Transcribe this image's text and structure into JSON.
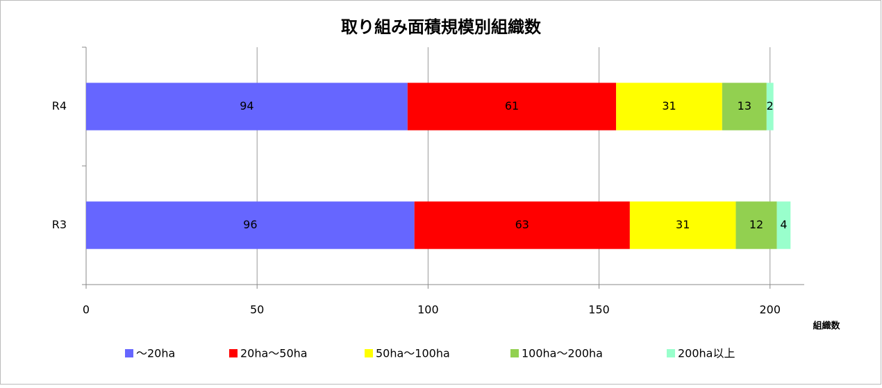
{
  "chart_data": {
    "type": "stacked-bar-horizontal",
    "title": "取り組み面積規模別組織数",
    "categories": [
      "R4",
      "R3"
    ],
    "series": [
      {
        "name": "～20ha",
        "color": "#6666ff",
        "values": [
          94,
          96
        ]
      },
      {
        "name": "20ha～50ha",
        "color": "#ff0000",
        "values": [
          61,
          63
        ]
      },
      {
        "name": "50ha～100ha",
        "color": "#ffff00",
        "values": [
          31,
          31
        ]
      },
      {
        "name": "100ha～200ha",
        "color": "#92d050",
        "values": [
          13,
          12
        ]
      },
      {
        "name": "200ha以上",
        "color": "#99ffcc",
        "values": [
          2,
          4
        ]
      }
    ],
    "xlabel": "組織数",
    "xlim": [
      0,
      210
    ],
    "xticks": [
      0,
      50,
      100,
      150,
      200
    ],
    "grid": true,
    "legend": "bottom"
  }
}
